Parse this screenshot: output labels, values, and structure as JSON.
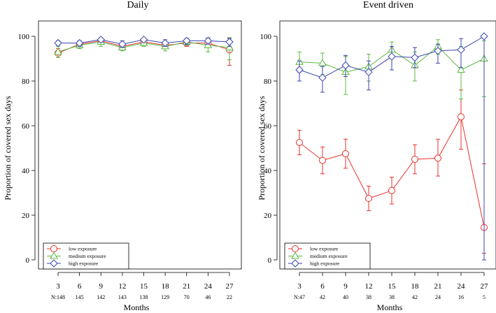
{
  "figure": {
    "colors": {
      "low": "#e8302a",
      "medium": "#5cb840",
      "high": "#3a45b0"
    },
    "marker_shapes": {
      "low": "circle",
      "medium": "triangle",
      "high": "diamond"
    }
  },
  "chart_data": [
    {
      "type": "line",
      "title": "Daily",
      "xlabel": "Months",
      "ylabel": "Proportion of covered sex days",
      "x": [
        3,
        6,
        9,
        12,
        15,
        18,
        21,
        24,
        27
      ],
      "xticks": [
        "3",
        "6",
        "9",
        "12",
        "15",
        "18",
        "21",
        "24",
        "27"
      ],
      "yticks": [
        0,
        20,
        40,
        60,
        80,
        100
      ],
      "xlim": [
        3,
        27
      ],
      "ylim": [
        0,
        100
      ],
      "n_prefix": "N:",
      "n": [
        "148",
        "145",
        "142",
        "143",
        "138",
        "129",
        "70",
        "46",
        "22"
      ],
      "legend_position": "bottom-left",
      "series": [
        {
          "key": "low",
          "name": "low exposure",
          "values": [
            92.5,
            96.5,
            98,
            95.5,
            97.5,
            96,
            97,
            97,
            94
          ],
          "ci_low": [
            90.5,
            95,
            96.5,
            94,
            96,
            94.5,
            95.5,
            95,
            87
          ],
          "ci_high": [
            94.5,
            98,
            99.3,
            97,
            99,
            97.5,
            98.5,
            98.5,
            99
          ]
        },
        {
          "key": "medium",
          "name": "medium exposure",
          "values": [
            93,
            96,
            97.5,
            95,
            97,
            95.5,
            97.5,
            96,
            95
          ],
          "ci_low": [
            90.5,
            94.5,
            95.5,
            93.5,
            95.5,
            93.5,
            96,
            93,
            89.5
          ],
          "ci_high": [
            95.5,
            97.5,
            99,
            97,
            98.5,
            97.5,
            99,
            99,
            99.5
          ]
        },
        {
          "key": "high",
          "name": "high exposure",
          "values": [
            97,
            97,
            98.5,
            96.5,
            98.5,
            97,
            98,
            98,
            97.5
          ],
          "ci_low": [
            96,
            95.5,
            97.5,
            95,
            97.5,
            95.5,
            96.5,
            96.5,
            95.5
          ],
          "ci_high": [
            98,
            98,
            99.3,
            98,
            99.3,
            98.5,
            99,
            99.3,
            99
          ]
        }
      ]
    },
    {
      "type": "line",
      "title": "Event driven",
      "xlabel": "Months",
      "ylabel": "Proportion of covered sex days",
      "x": [
        3,
        6,
        9,
        12,
        15,
        18,
        21,
        24,
        27
      ],
      "xticks": [
        "3",
        "6",
        "9",
        "12",
        "15",
        "18",
        "21",
        "24",
        "27"
      ],
      "yticks": [
        0,
        20,
        40,
        60,
        80,
        100
      ],
      "xlim": [
        3,
        27
      ],
      "ylim": [
        0,
        100
      ],
      "n_prefix": "N:",
      "n": [
        "47",
        "42",
        "40",
        "38",
        "38",
        "42",
        "24",
        "16",
        "5"
      ],
      "legend_position": "bottom-left",
      "series": [
        {
          "key": "low",
          "name": "low exposure",
          "values": [
            52.5,
            44.5,
            47.5,
            27.5,
            31,
            45,
            45.5,
            64,
            14.5
          ],
          "ci_low": [
            47,
            38.5,
            41,
            22,
            25,
            38.5,
            37.5,
            49.5,
            3
          ],
          "ci_high": [
            58,
            50.5,
            54,
            33,
            37,
            51.5,
            54,
            76,
            43
          ]
        },
        {
          "key": "medium",
          "name": "medium exposure",
          "values": [
            88.5,
            88,
            84,
            86.5,
            94,
            87,
            95.5,
            85,
            90
          ],
          "ci_low": [
            84,
            83,
            74,
            80,
            90,
            80,
            92,
            72,
            73
          ],
          "ci_high": [
            93,
            92.5,
            91,
            92,
            97.5,
            93,
            98.5,
            95.5,
            98
          ]
        },
        {
          "key": "high",
          "name": "high exposure",
          "values": [
            85,
            81.5,
            87,
            84,
            91,
            90.5,
            93.5,
            94,
            100
          ],
          "ci_low": [
            80,
            75,
            82,
            76,
            85,
            86,
            88,
            86,
            0
          ],
          "ci_high": [
            89,
            86.5,
            91.5,
            89,
            95.5,
            95,
            96.5,
            99,
            100
          ]
        }
      ]
    }
  ]
}
